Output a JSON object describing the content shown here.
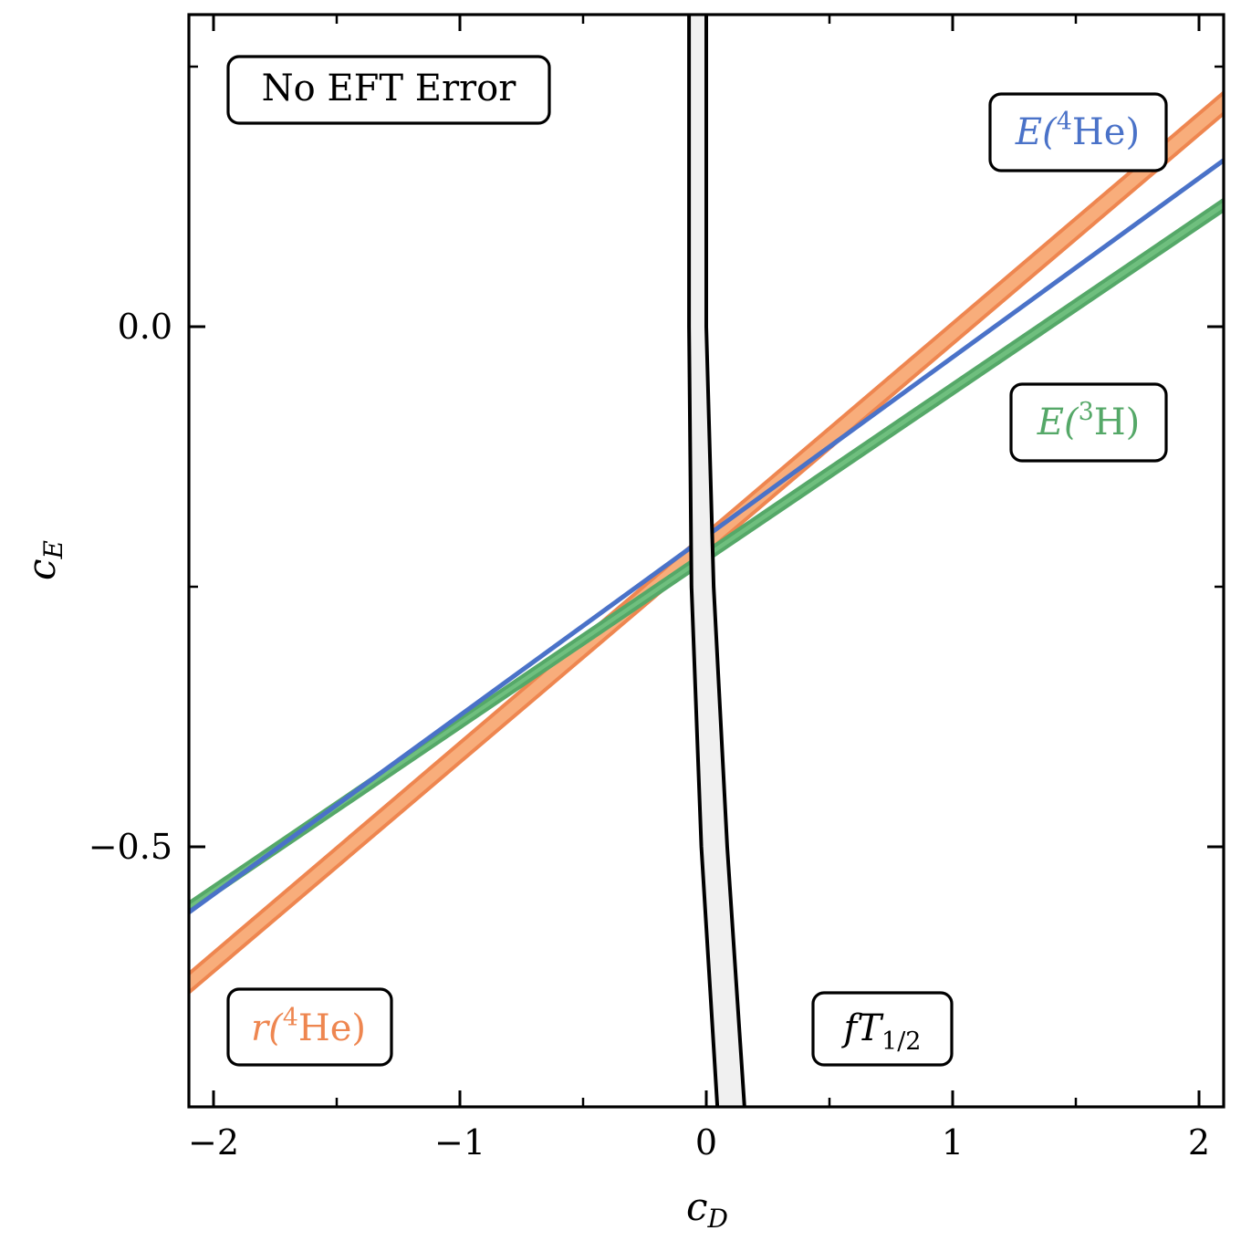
{
  "chart_data": {
    "type": "line",
    "xlabel": "c_D",
    "ylabel": "c_E",
    "xlim": [
      -2.1,
      2.1
    ],
    "ylim": [
      -0.75,
      0.3
    ],
    "x_ticks": [
      -2,
      -1,
      0,
      1,
      2
    ],
    "x_tick_labels": [
      "−2",
      "−1",
      "0",
      "1",
      "2"
    ],
    "y_ticks": [
      -0.5,
      0.0
    ],
    "y_tick_labels": [
      "−0.5",
      "0.0"
    ],
    "grid": false,
    "series": [
      {
        "name": "r(⁴He)",
        "color": "#ee8650",
        "fill": "#f8ad7b",
        "style": "band",
        "x": [
          -2.1,
          2.1
        ],
        "lower": [
          -0.64,
          0.205
        ],
        "upper": [
          -0.622,
          0.225
        ]
      },
      {
        "name": "E(³H)",
        "color": "#55a868",
        "fill": "#6fbf7e",
        "style": "band",
        "x": [
          -2.1,
          2.1
        ],
        "lower": [
          -0.562,
          0.112
        ],
        "upper": [
          -0.554,
          0.122
        ]
      },
      {
        "name": "E(⁴He)",
        "color": "#4a72c8",
        "style": "line",
        "x": [
          -2.1,
          2.1
        ],
        "y": [
          -0.563,
          0.16
        ]
      },
      {
        "name": "fT₁/₂",
        "color": "#000000",
        "fill": "#f0f0f0",
        "style": "band-vertical",
        "y": [
          -0.75,
          -0.5,
          -0.25,
          0.0,
          0.3
        ],
        "left": [
          0.045,
          -0.02,
          -0.06,
          -0.07,
          -0.07
        ],
        "right": [
          0.155,
          0.085,
          0.03,
          0.0,
          0.0
        ]
      }
    ],
    "annotations": [
      {
        "text_main": "No EFT Error",
        "text_sup": "",
        "text_tail": "",
        "text_sub": "",
        "color": "#000000"
      },
      {
        "text_main": "E(",
        "text_sup": "4",
        "text_tail": "He)",
        "text_sub": "",
        "color": "#4a72c8"
      },
      {
        "text_main": "E(",
        "text_sup": "3",
        "text_tail": "H)",
        "text_sub": "",
        "color": "#55a868"
      },
      {
        "text_main": "r(",
        "text_sup": "4",
        "text_tail": "He)",
        "text_sub": "",
        "color": "#ee8650"
      },
      {
        "text_main": "fT",
        "text_sup": "",
        "text_tail": "",
        "text_sub": "1/2",
        "color": "#000000"
      }
    ]
  }
}
